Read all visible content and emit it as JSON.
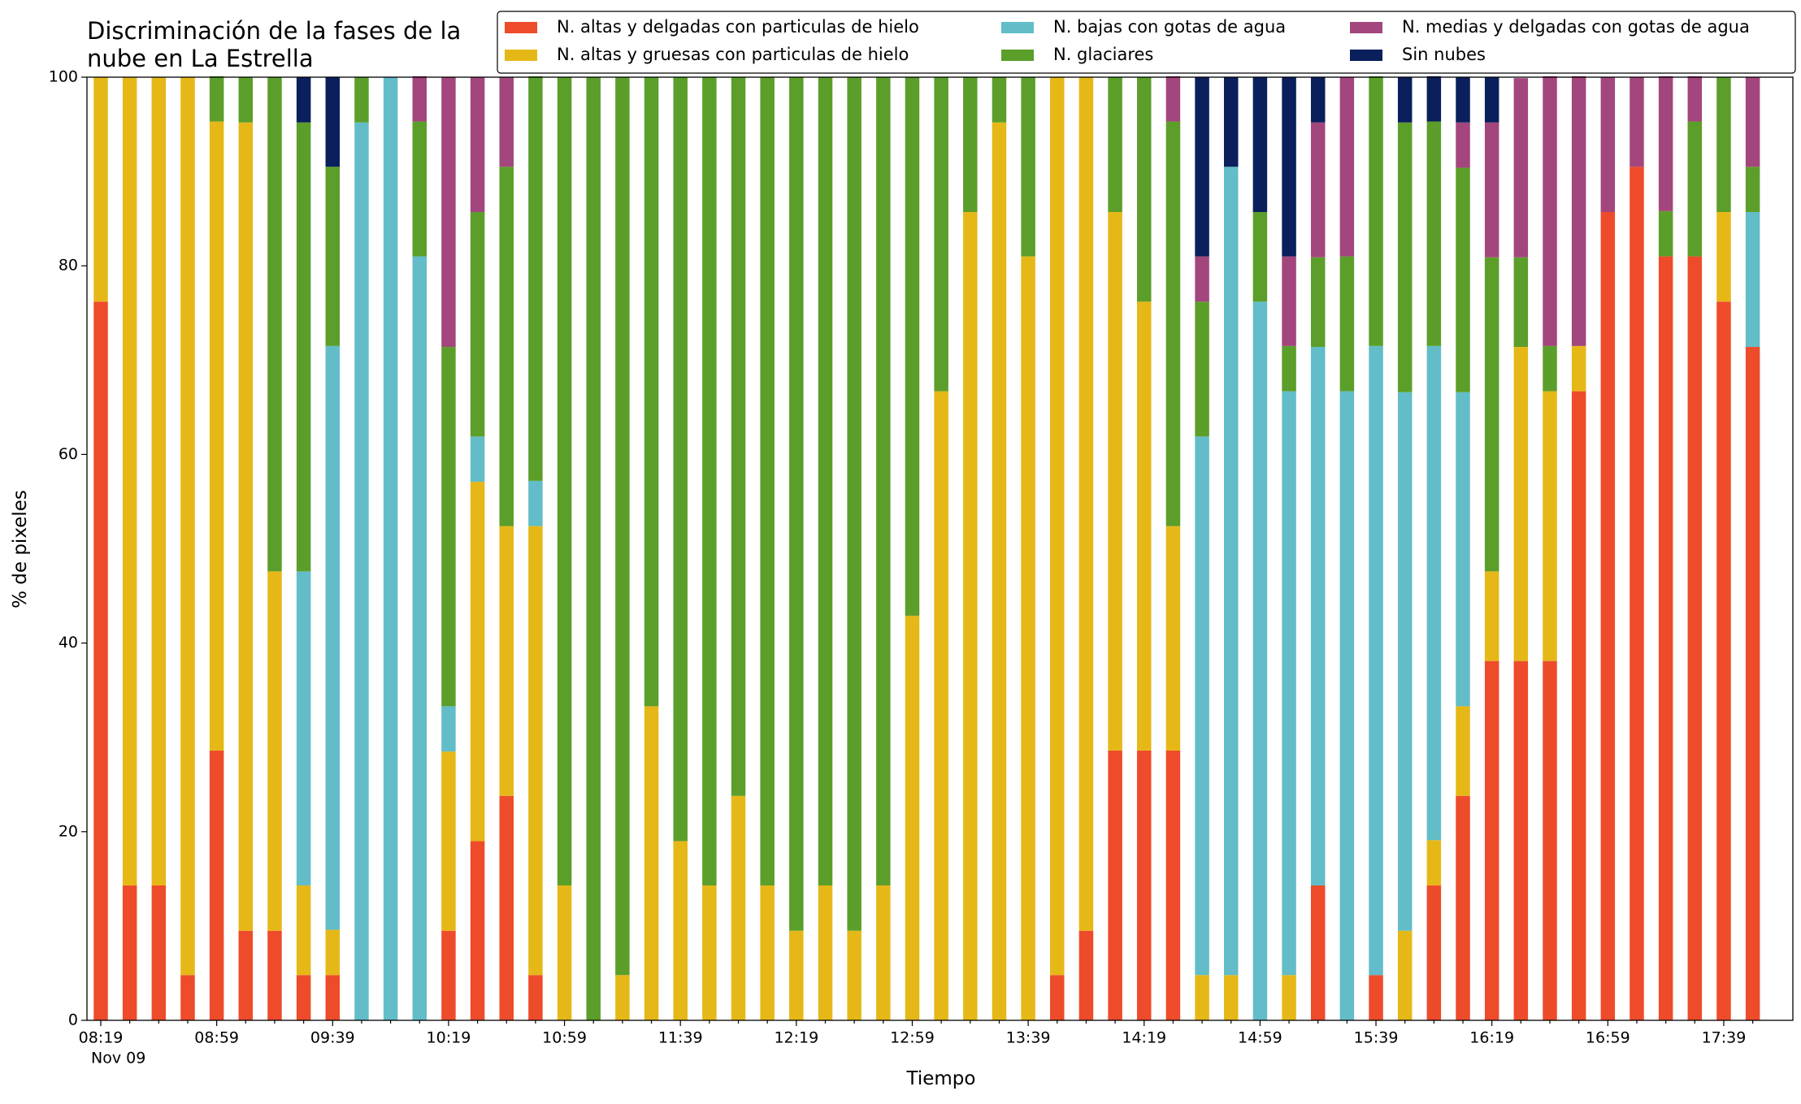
{
  "chart_data": {
    "type": "stacked_bar",
    "title": [
      "Discriminación de la fases de la",
      "nube en La Estrella"
    ],
    "x_label": "Tiempo",
    "y_label": "% de pixeles",
    "date_label": "Nov 09",
    "categories": [
      "08:19",
      null,
      null,
      null,
      "08:59",
      null,
      null,
      null,
      "09:39",
      null,
      null,
      null,
      "10:19",
      null,
      null,
      null,
      "10:59",
      null,
      null,
      null,
      "11:39",
      null,
      null,
      null,
      "12:19",
      null,
      null,
      null,
      "12:59",
      null,
      null,
      null,
      "13:39",
      null,
      null,
      null,
      "14:19",
      null,
      null,
      null,
      "14:59",
      null,
      null,
      null,
      "15:39",
      null,
      null,
      null,
      "16:19",
      null,
      null,
      null,
      "16:59",
      null,
      null,
      null,
      "17:39",
      null
    ],
    "ylim": [
      0,
      100
    ],
    "yticks": [
      0,
      20,
      40,
      60,
      80,
      100
    ],
    "series": [
      {
        "name": "N. altas y delgadas con particulas de hielo",
        "color": "#ee4b2b",
        "values": [
          76.2,
          14.3,
          14.3,
          4.8,
          28.6,
          9.5,
          9.5,
          4.8,
          4.8,
          0,
          0,
          0,
          9.5,
          19.0,
          23.8,
          4.8,
          0,
          0,
          0,
          0,
          0,
          0,
          0,
          0,
          0,
          0,
          0,
          0,
          0,
          0,
          0,
          0,
          0,
          4.8,
          9.5,
          28.6,
          28.6,
          28.6,
          0,
          0,
          0,
          0,
          14.3,
          0,
          4.8,
          0,
          14.3,
          23.8,
          38.1,
          38.1,
          38.1,
          66.7,
          85.7,
          90.5,
          81.0,
          81.0,
          76.2,
          71.4
        ]
      },
      {
        "name": "N. altas y gruesas con particulas de hielo",
        "color": "#e6b817",
        "values": [
          23.8,
          85.7,
          85.7,
          95.2,
          66.7,
          85.7,
          38.1,
          9.5,
          4.8,
          0,
          0,
          0,
          19.0,
          38.1,
          28.6,
          47.6,
          14.3,
          0,
          4.8,
          33.3,
          19.0,
          14.3,
          23.8,
          14.3,
          9.5,
          14.3,
          9.5,
          14.3,
          42.9,
          66.7,
          85.7,
          95.2,
          81.0,
          95.2,
          90.5,
          57.1,
          47.6,
          23.8,
          4.8,
          4.8,
          0,
          4.8,
          0,
          0,
          0,
          9.5,
          4.8,
          9.5,
          9.5,
          33.3,
          28.6,
          4.8,
          0,
          0,
          0,
          0,
          9.5,
          0
        ]
      },
      {
        "name": "N. bajas con gotas de agua",
        "color": "#62bdc8",
        "values": [
          0,
          0,
          0,
          0,
          0,
          0,
          0,
          33.3,
          61.9,
          95.2,
          100,
          81.0,
          4.8,
          4.8,
          0,
          4.8,
          0,
          0,
          0,
          0,
          0,
          0,
          0,
          0,
          0,
          0,
          0,
          0,
          0,
          0,
          0,
          0,
          0,
          0,
          0,
          0,
          0,
          0,
          57.1,
          85.7,
          76.2,
          61.9,
          57.1,
          66.7,
          66.7,
          57.1,
          52.4,
          33.3,
          0,
          0,
          0,
          0,
          0,
          0,
          0,
          0,
          0,
          14.3
        ]
      },
      {
        "name": "N. glaciares",
        "color": "#5c9e2a",
        "values": [
          0,
          0,
          0,
          0,
          4.8,
          4.8,
          52.4,
          47.6,
          19.0,
          4.8,
          0,
          14.3,
          38.1,
          23.8,
          38.1,
          42.9,
          85.7,
          100,
          95.2,
          66.7,
          81.0,
          85.7,
          76.2,
          85.7,
          90.5,
          85.7,
          90.5,
          85.7,
          57.1,
          33.3,
          14.3,
          4.8,
          19.0,
          0,
          0,
          14.3,
          23.8,
          42.9,
          14.3,
          0,
          9.5,
          4.8,
          9.5,
          14.3,
          28.6,
          28.6,
          23.8,
          23.8,
          33.3,
          9.5,
          4.8,
          0,
          0,
          0,
          4.8,
          14.3,
          14.3,
          4.8
        ]
      },
      {
        "name": "N. medias y delgadas con gotas de agua",
        "color": "#a3467d",
        "values": [
          0,
          0,
          0,
          0,
          0,
          0,
          0,
          0,
          0,
          0,
          0,
          4.8,
          28.6,
          14.3,
          9.5,
          0,
          0,
          0,
          0,
          0,
          0,
          0,
          0,
          0,
          0,
          0,
          0,
          0,
          0,
          0,
          0,
          0,
          0,
          0,
          0,
          0,
          0,
          4.8,
          4.8,
          0,
          0,
          9.5,
          14.3,
          19.0,
          0,
          0,
          0,
          4.8,
          14.3,
          19.0,
          28.6,
          28.6,
          14.3,
          9.5,
          14.3,
          4.8,
          0,
          9.5
        ]
      },
      {
        "name": "Sin nubes",
        "color": "#0a1f5c",
        "values": [
          0,
          0,
          0,
          0,
          0,
          0,
          0,
          4.8,
          9.5,
          0,
          0,
          0,
          0,
          0,
          0,
          0,
          0,
          0,
          0,
          0,
          0,
          0,
          0,
          0,
          0,
          0,
          0,
          0,
          0,
          0,
          0,
          0,
          0,
          0,
          0,
          0,
          0,
          0,
          19.0,
          9.5,
          14.3,
          19.0,
          4.8,
          0,
          0,
          4.8,
          4.8,
          4.8,
          4.8,
          0,
          0,
          0,
          0,
          0,
          0,
          0,
          0,
          0
        ]
      }
    ]
  }
}
